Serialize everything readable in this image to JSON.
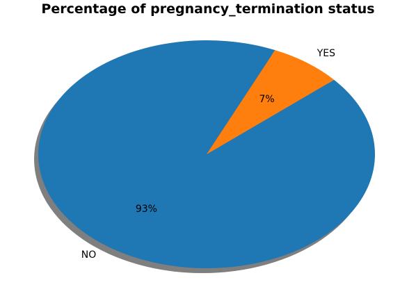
{
  "chart_data": {
    "type": "pie",
    "title": "Percentage of pregnancy_termination status",
    "categories": [
      "NO",
      "YES"
    ],
    "values": [
      93,
      7
    ],
    "percent_labels": [
      "93%",
      "7%"
    ],
    "colors": [
      "#1f77b4",
      "#ff7f0e"
    ],
    "shadow": true,
    "start_angle_deg": 66,
    "legend": "none"
  }
}
